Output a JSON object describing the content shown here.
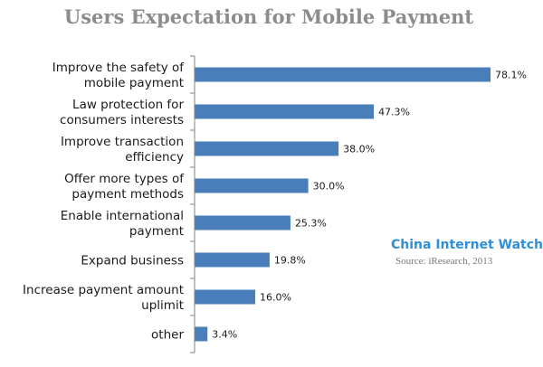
{
  "colors": {
    "bar": "#4a7ebb",
    "axis": "#808080",
    "brand": "#2f8fd6"
  },
  "watermark": {
    "brand": "China Internet Watch",
    "source": "Source: iResearch,  2013"
  },
  "chart_data": {
    "type": "bar",
    "orientation": "horizontal",
    "title": "Users Expectation for Mobile Payment",
    "categories": [
      [
        "Improve the safety of",
        "mobile payment"
      ],
      [
        "Law protection for",
        "consumers interests"
      ],
      [
        "Improve transaction",
        "efficiency"
      ],
      [
        "Offer more types of",
        "payment methods"
      ],
      [
        "Enable international",
        "payment"
      ],
      [
        "Expand business"
      ],
      [
        "Increase payment amount",
        "uplimit"
      ],
      [
        "other"
      ]
    ],
    "values": [
      78.1,
      47.3,
      38.0,
      30.0,
      25.3,
      19.8,
      16.0,
      3.4
    ],
    "value_labels": [
      "78.1%",
      "47.3%",
      "38.0%",
      "30.0%",
      "25.3%",
      "19.8%",
      "16.0%",
      "3.4%"
    ],
    "unit": "%",
    "xlim": [
      0,
      80
    ],
    "grid": false,
    "legend": "none"
  }
}
